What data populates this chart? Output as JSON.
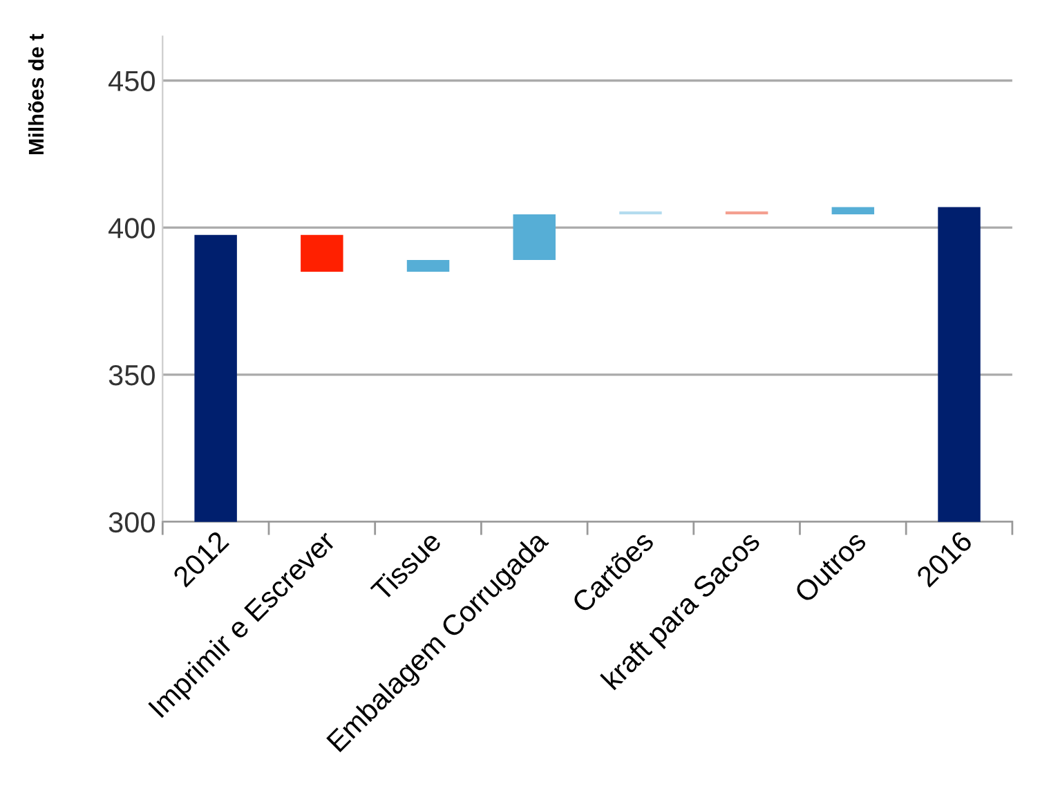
{
  "chart_data": {
    "type": "bar",
    "ylabel": "Milhões de t",
    "categories": [
      "2012",
      "Imprimir e Escrever",
      "Tissue",
      "Embalagem Corrugada",
      "Cartões",
      "kraft para Sacos",
      "Outros",
      "2016"
    ],
    "values": [
      397.5,
      -12.5,
      4,
      15.5,
      1,
      -1,
      2.5,
      407
    ],
    "base": [
      null,
      397.5,
      385,
      389,
      404.5,
      405.5,
      404.5,
      null
    ],
    "colors": [
      "#001f6e",
      "#ff2000",
      "#56aed6",
      "#56aed6",
      "#b4dcef",
      "#f4a090",
      "#56aed6",
      "#001f6e"
    ],
    "ylim": [
      300,
      465
    ],
    "yticks": [
      300,
      350,
      400,
      450
    ],
    "grid": "y"
  }
}
